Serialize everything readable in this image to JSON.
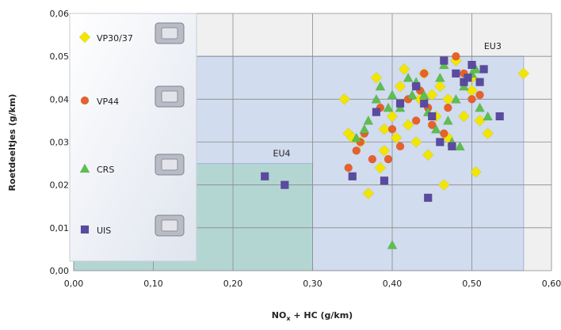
{
  "chart_data": {
    "type": "scatter",
    "xlabel": {
      "main": "NO",
      "sub": "x",
      "rest": " + HC (g/km)"
    },
    "ylabel": "Roetdeeltjes (g/km)",
    "xlim": [
      0,
      0.6
    ],
    "ylim": [
      0,
      0.06
    ],
    "xticks": [
      {
        "value": 0,
        "label": "0,00"
      },
      {
        "value": 0.1,
        "label": "0,10"
      },
      {
        "value": 0.2,
        "label": "0,20"
      },
      {
        "value": 0.3,
        "label": "0,30"
      },
      {
        "value": 0.4,
        "label": "0,40"
      },
      {
        "value": 0.5,
        "label": "0,50"
      },
      {
        "value": 0.6,
        "label": "0,60"
      }
    ],
    "yticks": [
      {
        "value": 0,
        "label": "0,00"
      },
      {
        "value": 0.01,
        "label": "0,01"
      },
      {
        "value": 0.02,
        "label": "0,02"
      },
      {
        "value": 0.03,
        "label": "0,03"
      },
      {
        "value": 0.04,
        "label": "0,04"
      },
      {
        "value": 0.05,
        "label": "0,05"
      },
      {
        "value": 0.06,
        "label": "0,06"
      }
    ],
    "grid": true,
    "regions": [
      {
        "name": "EU3",
        "xlim": [
          0,
          0.565
        ],
        "ylim": [
          0,
          0.05
        ],
        "color": "#c7d6ee"
      },
      {
        "name": "EU4",
        "xlim": [
          0,
          0.3
        ],
        "ylim": [
          0,
          0.025
        ],
        "color": "#a9d4c8"
      }
    ],
    "series": [
      {
        "name": "VP30/37",
        "color": "#f2e600",
        "marker": "diamond",
        "x": [
          0.34,
          0.345,
          0.35,
          0.36,
          0.37,
          0.38,
          0.385,
          0.39,
          0.39,
          0.4,
          0.405,
          0.41,
          0.415,
          0.42,
          0.43,
          0.435,
          0.44,
          0.445,
          0.45,
          0.455,
          0.46,
          0.465,
          0.47,
          0.47,
          0.48,
          0.49,
          0.5,
          0.5,
          0.505,
          0.51,
          0.52,
          0.565
        ],
        "values": [
          0.04,
          0.032,
          0.031,
          0.03,
          0.018,
          0.045,
          0.024,
          0.028,
          0.033,
          0.036,
          0.031,
          0.043,
          0.047,
          0.034,
          0.03,
          0.04,
          0.046,
          0.027,
          0.041,
          0.036,
          0.043,
          0.02,
          0.031,
          0.04,
          0.049,
          0.036,
          0.045,
          0.042,
          0.023,
          0.035,
          0.032,
          0.046
        ]
      },
      {
        "name": "VP44",
        "color": "#e8602a",
        "marker": "circle",
        "x": [
          0.345,
          0.355,
          0.36,
          0.365,
          0.375,
          0.385,
          0.395,
          0.4,
          0.41,
          0.42,
          0.43,
          0.435,
          0.44,
          0.445,
          0.45,
          0.465,
          0.47,
          0.48,
          0.49,
          0.5,
          0.51
        ],
        "values": [
          0.024,
          0.028,
          0.03,
          0.032,
          0.026,
          0.038,
          0.026,
          0.033,
          0.029,
          0.04,
          0.035,
          0.042,
          0.046,
          0.038,
          0.034,
          0.032,
          0.038,
          0.05,
          0.046,
          0.04,
          0.041
        ]
      },
      {
        "name": "CRS",
        "color": "#5cbf4f",
        "marker": "triangle",
        "x": [
          0.355,
          0.365,
          0.37,
          0.38,
          0.385,
          0.395,
          0.4,
          0.4,
          0.41,
          0.42,
          0.425,
          0.43,
          0.44,
          0.445,
          0.455,
          0.46,
          0.465,
          0.47,
          0.475,
          0.48,
          0.485,
          0.49,
          0.5,
          0.505,
          0.51,
          0.52
        ],
        "values": [
          0.031,
          0.033,
          0.035,
          0.04,
          0.043,
          0.038,
          0.041,
          0.006,
          0.038,
          0.045,
          0.041,
          0.044,
          0.041,
          0.037,
          0.033,
          0.045,
          0.048,
          0.035,
          0.03,
          0.04,
          0.029,
          0.043,
          0.046,
          0.047,
          0.038,
          0.036
        ]
      },
      {
        "name": "UIS",
        "color": "#5a4ba0",
        "marker": "square",
        "x": [
          0.24,
          0.265,
          0.35,
          0.38,
          0.39,
          0.41,
          0.43,
          0.44,
          0.445,
          0.45,
          0.46,
          0.465,
          0.475,
          0.48,
          0.49,
          0.495,
          0.5,
          0.51,
          0.515,
          0.535
        ],
        "values": [
          0.022,
          0.02,
          0.022,
          0.037,
          0.021,
          0.039,
          0.043,
          0.039,
          0.017,
          0.036,
          0.03,
          0.049,
          0.029,
          0.046,
          0.044,
          0.045,
          0.048,
          0.044,
          0.047,
          0.036
        ]
      }
    ]
  }
}
